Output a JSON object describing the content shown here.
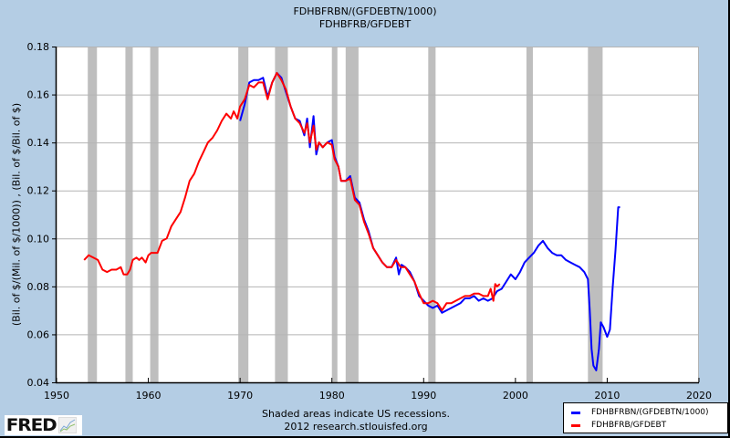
{
  "header": {
    "title_line1": "FDHBFRBN/(GFDEBTN/1000)",
    "title_line2": "FDHBFRB/GFDEBT"
  },
  "axes": {
    "ylabel": "(Bil. of $/(Mil. of $/1000)) , (Bil. of $/Bil. of $)"
  },
  "footer": {
    "note_line1": "Shaded areas indicate US recessions.",
    "note_line2": "2012 research.stlouisfed.org",
    "logo_text": "FRED"
  },
  "legend": {
    "items": [
      {
        "label": "FDHBFRBN/(GFDEBTN/1000)",
        "color": "#0000ff"
      },
      {
        "label": "FDHBFRB/GFDEBT",
        "color": "#ff0000"
      }
    ]
  },
  "colors": {
    "background": "#b4cde4",
    "plot_bg": "#ffffff",
    "grid": "#b4b4b4",
    "recession": "#bebebe",
    "series_blue": "#0000ff",
    "series_red": "#ff0000"
  },
  "chart_data": {
    "type": "line",
    "title": "FDHBFRBN/(GFDEBTN/1000) ; FDHBFRB/GFDEBT",
    "xlabel": "",
    "ylabel": "(Bil. of $/(Mil. of $/1000)) , (Bil. of $/Bil. of $)",
    "xlim": [
      1950,
      2020
    ],
    "ylim": [
      0.04,
      0.18
    ],
    "x_ticks": [
      1950,
      1960,
      1970,
      1980,
      1990,
      2000,
      2010,
      2020
    ],
    "y_ticks": [
      0.04,
      0.06,
      0.08,
      0.1,
      0.12,
      0.14,
      0.16,
      0.18
    ],
    "y_tick_labels": [
      "0.04",
      "0.06",
      "0.08",
      "0.10",
      "0.12",
      "0.14",
      "0.16",
      "0.18"
    ],
    "grid": true,
    "legend_position": "bottom-right",
    "annotations": [
      "Shaded areas indicate US recessions."
    ],
    "recessions": [
      [
        1953.4,
        1954.4
      ],
      [
        1957.5,
        1958.3
      ],
      [
        1960.2,
        1961.1
      ],
      [
        1969.8,
        1970.9
      ],
      [
        1973.8,
        1975.2
      ],
      [
        1980.0,
        1980.6
      ],
      [
        1981.5,
        1982.9
      ],
      [
        1990.5,
        1991.3
      ],
      [
        2001.2,
        2001.9
      ],
      [
        2007.9,
        2009.5
      ]
    ],
    "series": [
      {
        "name": "FDHBFRBN/(GFDEBTN/1000)",
        "color": "#0000ff",
        "x": [
          1970.0,
          1970.5,
          1971.0,
          1971.5,
          1972.0,
          1972.5,
          1973.0,
          1973.5,
          1974.0,
          1974.5,
          1975.0,
          1975.5,
          1976.0,
          1976.5,
          1977.0,
          1977.3,
          1977.6,
          1978.0,
          1978.3,
          1978.6,
          1979.0,
          1979.5,
          1980.0,
          1980.3,
          1980.7,
          1981.0,
          1981.5,
          1982.0,
          1982.5,
          1983.0,
          1983.5,
          1984.0,
          1984.5,
          1985.0,
          1985.5,
          1986.0,
          1986.5,
          1987.0,
          1987.3,
          1987.6,
          1988.0,
          1988.5,
          1989.0,
          1989.5,
          1990.0,
          1990.5,
          1991.0,
          1991.5,
          1992.0,
          1992.5,
          1993.0,
          1993.5,
          1994.0,
          1994.5,
          1995.0,
          1995.5,
          1996.0,
          1996.5,
          1997.0,
          1997.5,
          1998.0,
          1998.5,
          1999.0,
          1999.5,
          2000.0,
          2000.5,
          2001.0,
          2001.5,
          2002.0,
          2002.5,
          2003.0,
          2003.5,
          2004.0,
          2004.5,
          2005.0,
          2005.5,
          2006.0,
          2006.5,
          2007.0,
          2007.5,
          2007.9,
          2008.1,
          2008.3,
          2008.5,
          2008.8,
          2009.1,
          2009.3,
          2009.6,
          2010.0,
          2010.3,
          2010.6,
          2010.9,
          2011.2,
          2011.4
        ],
        "values": [
          0.149,
          0.156,
          0.165,
          0.166,
          0.166,
          0.167,
          0.159,
          0.165,
          0.169,
          0.167,
          0.161,
          0.155,
          0.15,
          0.149,
          0.143,
          0.15,
          0.138,
          0.151,
          0.135,
          0.14,
          0.138,
          0.14,
          0.141,
          0.134,
          0.13,
          0.124,
          0.124,
          0.126,
          0.117,
          0.115,
          0.108,
          0.103,
          0.096,
          0.093,
          0.09,
          0.088,
          0.088,
          0.092,
          0.085,
          0.089,
          0.088,
          0.086,
          0.082,
          0.076,
          0.074,
          0.072,
          0.071,
          0.072,
          0.069,
          0.07,
          0.071,
          0.072,
          0.073,
          0.075,
          0.075,
          0.076,
          0.074,
          0.075,
          0.074,
          0.075,
          0.078,
          0.079,
          0.082,
          0.085,
          0.083,
          0.086,
          0.09,
          0.092,
          0.094,
          0.097,
          0.099,
          0.096,
          0.094,
          0.093,
          0.093,
          0.091,
          0.09,
          0.089,
          0.088,
          0.086,
          0.083,
          0.07,
          0.054,
          0.047,
          0.045,
          0.054,
          0.065,
          0.063,
          0.059,
          0.062,
          0.08,
          0.095,
          0.113,
          0.113
        ]
      },
      {
        "name": "FDHBFRB/GFDEBT",
        "color": "#ff0000",
        "x": [
          1953.0,
          1953.5,
          1954.0,
          1954.5,
          1955.0,
          1955.5,
          1956.0,
          1956.5,
          1957.0,
          1957.3,
          1957.7,
          1958.0,
          1958.3,
          1958.7,
          1959.0,
          1959.3,
          1959.7,
          1960.0,
          1960.3,
          1960.7,
          1961.0,
          1961.5,
          1962.0,
          1962.5,
          1963.0,
          1963.5,
          1964.0,
          1964.5,
          1965.0,
          1965.5,
          1966.0,
          1966.5,
          1967.0,
          1967.5,
          1968.0,
          1968.5,
          1969.0,
          1969.3,
          1969.7,
          1970.0,
          1970.5,
          1971.0,
          1971.5,
          1972.0,
          1972.5,
          1973.0,
          1973.5,
          1974.0,
          1974.5,
          1975.0,
          1975.5,
          1976.0,
          1976.5,
          1977.0,
          1977.3,
          1977.6,
          1978.0,
          1978.3,
          1978.6,
          1979.0,
          1979.5,
          1980.0,
          1980.3,
          1980.7,
          1981.0,
          1981.5,
          1982.0,
          1982.5,
          1983.0,
          1983.5,
          1984.0,
          1984.5,
          1985.0,
          1985.5,
          1986.0,
          1986.5,
          1987.0,
          1987.5,
          1988.0,
          1988.5,
          1989.0,
          1989.5,
          1990.0,
          1990.5,
          1991.0,
          1991.5,
          1992.0,
          1992.5,
          1993.0,
          1993.5,
          1994.0,
          1994.5,
          1995.0,
          1995.5,
          1996.0,
          1996.5,
          1997.0,
          1997.3,
          1997.6,
          1997.8,
          1998.0,
          1998.3
        ],
        "values": [
          0.091,
          0.093,
          0.092,
          0.091,
          0.087,
          0.086,
          0.087,
          0.087,
          0.088,
          0.085,
          0.085,
          0.087,
          0.091,
          0.092,
          0.091,
          0.092,
          0.09,
          0.093,
          0.094,
          0.094,
          0.094,
          0.099,
          0.1,
          0.105,
          0.108,
          0.111,
          0.117,
          0.124,
          0.127,
          0.132,
          0.136,
          0.14,
          0.142,
          0.145,
          0.149,
          0.152,
          0.15,
          0.153,
          0.15,
          0.155,
          0.158,
          0.164,
          0.163,
          0.165,
          0.165,
          0.158,
          0.165,
          0.169,
          0.166,
          0.162,
          0.155,
          0.15,
          0.148,
          0.144,
          0.148,
          0.14,
          0.147,
          0.137,
          0.14,
          0.138,
          0.14,
          0.139,
          0.133,
          0.13,
          0.124,
          0.124,
          0.125,
          0.116,
          0.114,
          0.107,
          0.102,
          0.096,
          0.093,
          0.09,
          0.088,
          0.088,
          0.091,
          0.088,
          0.088,
          0.085,
          0.082,
          0.077,
          0.073,
          0.073,
          0.074,
          0.073,
          0.07,
          0.073,
          0.073,
          0.074,
          0.075,
          0.076,
          0.076,
          0.077,
          0.077,
          0.076,
          0.076,
          0.079,
          0.074,
          0.081,
          0.08,
          0.081
        ]
      }
    ]
  }
}
